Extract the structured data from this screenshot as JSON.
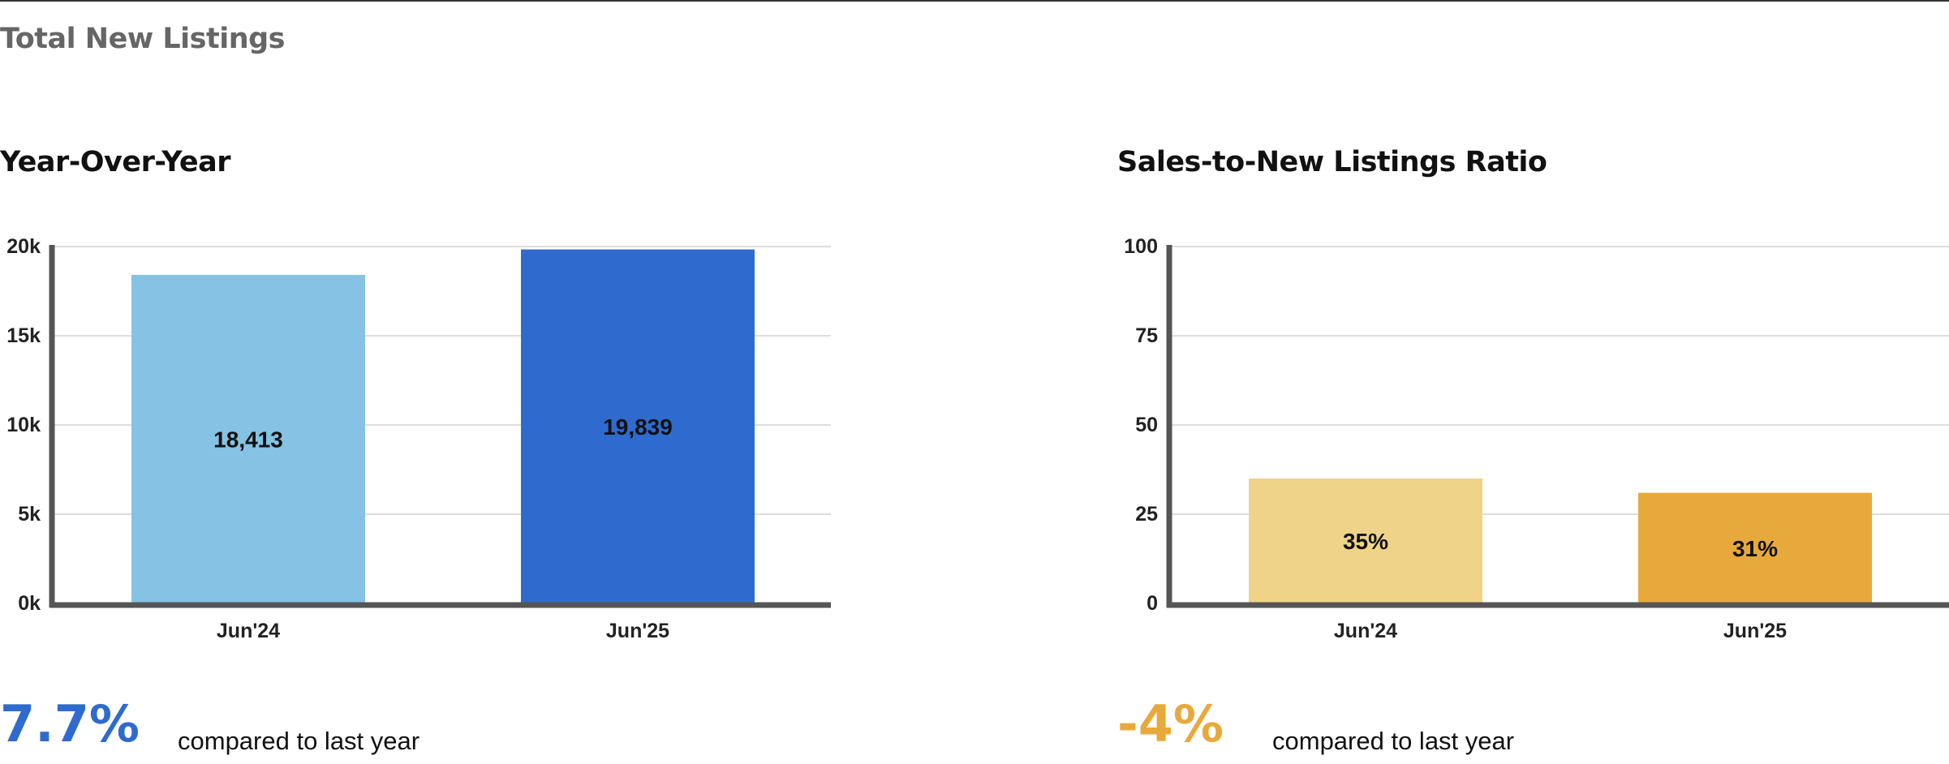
{
  "page": {
    "title": "Total New Listings"
  },
  "panels": [
    {
      "title": "Year-Over-Year",
      "change": {
        "value": "7.7%",
        "caption": "compared to last year",
        "color": "#2f6bcf"
      }
    },
    {
      "title": "Sales-to-New Listings Ratio",
      "change": {
        "value": "-4%",
        "caption": "compared to last year",
        "color": "#e8a93c"
      }
    }
  ],
  "chart_data": [
    {
      "type": "bar",
      "title": "Year-Over-Year",
      "categories": [
        "Jun'24",
        "Jun'25"
      ],
      "values": [
        18413,
        19839
      ],
      "value_labels": [
        "18,413",
        "19,839"
      ],
      "colors": [
        "#85c2e4",
        "#2f6bcf"
      ],
      "yticks": [
        {
          "value": 0,
          "label": "0k"
        },
        {
          "value": 5000,
          "label": "5k"
        },
        {
          "value": 10000,
          "label": "10k"
        },
        {
          "value": 15000,
          "label": "15k"
        },
        {
          "value": 20000,
          "label": "20k"
        }
      ],
      "ylim": [
        0,
        20000
      ],
      "grid": true,
      "xlabel": "",
      "ylabel": ""
    },
    {
      "type": "bar",
      "title": "Sales-to-New Listings Ratio",
      "categories": [
        "Jun'24",
        "Jun'25"
      ],
      "values": [
        35,
        31
      ],
      "value_labels": [
        "35%",
        "31%"
      ],
      "colors": [
        "#efd388",
        "#e8a93c"
      ],
      "yticks": [
        {
          "value": 0,
          "label": "0"
        },
        {
          "value": 25,
          "label": "25"
        },
        {
          "value": 50,
          "label": "50"
        },
        {
          "value": 75,
          "label": "75"
        },
        {
          "value": 100,
          "label": "100"
        }
      ],
      "ylim": [
        0,
        100
      ],
      "grid": true,
      "xlabel": "",
      "ylabel": ""
    }
  ]
}
